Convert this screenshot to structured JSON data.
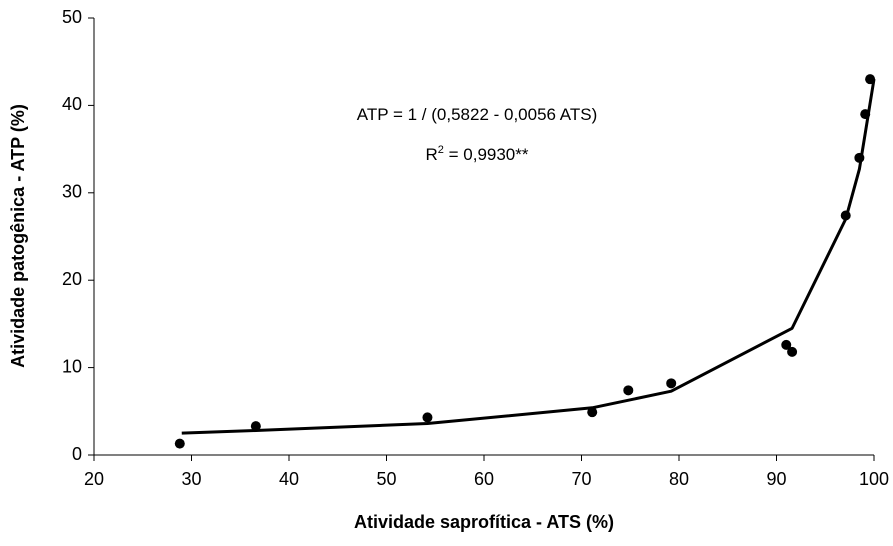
{
  "chart_data": {
    "type": "scatter",
    "x_label": "Atividade saprofítica - ATS (%)",
    "y_label": "Atividade patogênica - ATP (%)",
    "annotations": [
      "ATP = 1 / (0,5822 - 0,0056 ATS)",
      {
        "base": "R",
        "superscript": "2",
        "after": " = 0,9930**"
      }
    ],
    "xlim": [
      20,
      100
    ],
    "xticks": [
      20,
      30,
      40,
      50,
      60,
      70,
      80,
      90,
      100
    ],
    "ylim": [
      0,
      50
    ],
    "yticks": [
      0,
      10,
      20,
      30,
      40,
      50
    ],
    "points": {
      "color": "#000000",
      "x": [
        28.8,
        36.6,
        54.2,
        71.1,
        74.8,
        79.2,
        91.0,
        91.6,
        97.1,
        98.5,
        99.1,
        99.6
      ],
      "values": [
        1.3,
        3.3,
        4.3,
        4.9,
        7.4,
        8.2,
        12.6,
        11.8,
        27.4,
        34.0,
        39.0,
        43.0
      ]
    },
    "fit": {
      "color": "#000000",
      "x": [
        29.0,
        36.6,
        54.2,
        71.1,
        79.2,
        91.6,
        97.1,
        98.5,
        99.1,
        100.0
      ],
      "values": [
        2.5,
        2.8,
        3.6,
        5.4,
        7.3,
        14.5,
        27.0,
        32.7,
        36.8,
        43.0
      ]
    }
  }
}
